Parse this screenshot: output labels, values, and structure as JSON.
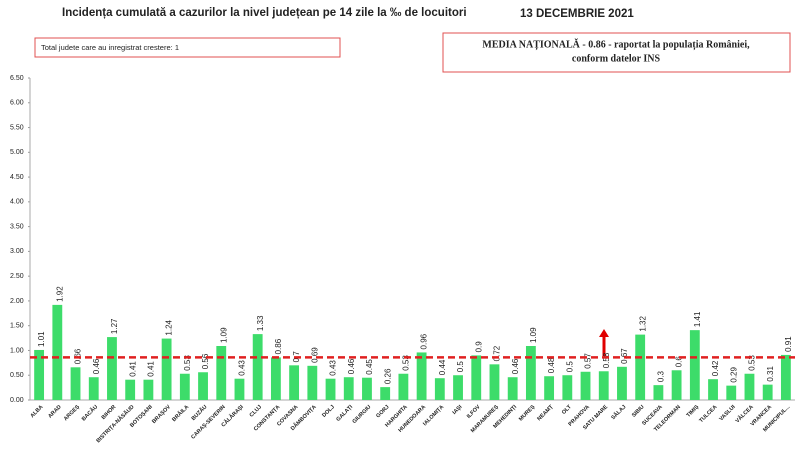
{
  "chart_data": {
    "type": "bar",
    "title": "Incidența cumulată a cazurilor la nivel județean pe 14 zile la ‰ de locuitori",
    "date": "13 DECEMBRIE 2021",
    "annotation": "Total judete care au inregistrat crestere: 1",
    "national_note": [
      "MEDIA NAȚIONALĂ - 0.86 -  raportat la populația României,",
      "conform datelor INS"
    ],
    "reference_line": 0.86,
    "reference_color": "#e02020",
    "color": "#3ddc6a",
    "categories": [
      "ALBA",
      "ARAD",
      "ARGEȘ",
      "BACĂU",
      "BIHOR",
      "BISTRIȚA-NĂSĂUD",
      "BOTOȘANI",
      "BRAȘOV",
      "BRĂILA",
      "BUZĂU",
      "CARAȘ-SEVERIN",
      "CĂLĂRAȘI",
      "CLUJ",
      "CONSTANȚA",
      "COVASNA",
      "DÂMBOVIȚA",
      "DOLJ",
      "GALAȚI",
      "GIURGIU",
      "GORJ",
      "HARGHITA",
      "HUNEDOARA",
      "IALOMIȚA",
      "IAȘI",
      "ILFOV",
      "MARAMUREȘ",
      "MEHEDINȚI",
      "MUREȘ",
      "NEAMȚ",
      "OLT",
      "PRAHOVA",
      "SATU MARE",
      "SĂLAJ",
      "SIBIU",
      "SUCEAVA",
      "TELEORMAN",
      "TIMIȘ",
      "TULCEA",
      "VASLUI",
      "VÂLCEA",
      "VRANCEA",
      "MUNICIPUL..."
    ],
    "values": [
      1.01,
      1.92,
      0.66,
      0.46,
      1.27,
      0.41,
      0.41,
      1.24,
      0.53,
      0.56,
      1.09,
      0.43,
      1.33,
      0.86,
      0.7,
      0.69,
      0.43,
      0.46,
      0.45,
      0.26,
      0.53,
      0.96,
      0.44,
      0.5,
      0.9,
      0.72,
      0.46,
      1.09,
      0.48,
      0.5,
      0.57,
      0.58,
      0.67,
      1.32,
      0.3,
      0.6,
      1.41,
      0.42,
      0.29,
      0.53,
      0.31,
      0.91
    ],
    "ylim": [
      0,
      6.5
    ],
    "yticks": [
      {
        "value": 0,
        "label": "0.00"
      },
      {
        "value": 0.5,
        "label": "0.50"
      },
      {
        "value": 1,
        "label": "1.00"
      },
      {
        "value": 1.5,
        "label": "1.50"
      },
      {
        "value": 2,
        "label": "2.00"
      },
      {
        "value": 2.5,
        "label": "2.50"
      },
      {
        "value": 3,
        "label": "3.00"
      },
      {
        "value": 3.5,
        "label": "3.50"
      },
      {
        "value": 4,
        "label": "4.00"
      },
      {
        "value": 4.5,
        "label": "4.50"
      },
      {
        "value": 5,
        "label": "5.00"
      },
      {
        "value": 5.5,
        "label": "5.50"
      },
      {
        "value": 6,
        "label": "6.00"
      },
      {
        "value": 6.5,
        "label": "6.50"
      }
    ]
  }
}
